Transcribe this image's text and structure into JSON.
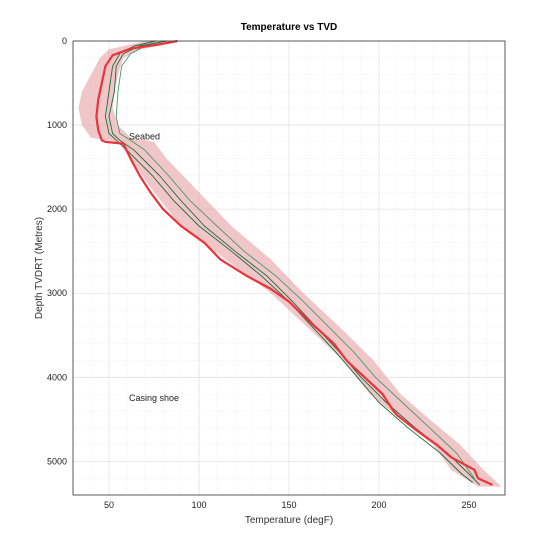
{
  "chart_data": {
    "type": "line",
    "title": "Temperature vs TVD",
    "xlabel": "Temperature (degF)",
    "ylabel": "Depth TVDRT (Metres)",
    "xlim": [
      30,
      270
    ],
    "ylim": [
      5400,
      0
    ],
    "x_ticks": [
      50,
      100,
      150,
      200,
      250
    ],
    "y_ticks": [
      0,
      1000,
      2000,
      3000,
      4000,
      5000
    ],
    "grid": true,
    "annotations": [
      {
        "text": "Seabed",
        "x": 60,
        "y": 1170
      },
      {
        "text": "Casing shoe",
        "x": 60,
        "y": 4280
      }
    ],
    "colors": {
      "band": "#e8a0a4",
      "main": "#e8343a",
      "green_dark": "#1e6b3c",
      "green_light": "#4a9a6a",
      "grid": "#e2e2e2",
      "axis": "#333333"
    },
    "band": {
      "y": [
        0,
        100,
        200,
        400,
        600,
        800,
        1000,
        1150,
        1200,
        1400,
        1800,
        2200,
        2600,
        3000,
        3400,
        3800,
        4200,
        4500,
        4800,
        5100,
        5300
      ],
      "x_low": [
        70,
        50,
        45,
        40,
        35,
        33,
        35,
        40,
        55,
        62,
        75,
        90,
        115,
        140,
        160,
        180,
        195,
        212,
        230,
        240,
        255
      ],
      "x_high": [
        90,
        68,
        58,
        55,
        53,
        52,
        55,
        62,
        75,
        82,
        100,
        118,
        140,
        158,
        178,
        197,
        212,
        228,
        245,
        258,
        268
      ]
    },
    "series": [
      {
        "type": "main",
        "x": [
          88,
          78,
          62,
          52,
          48,
          46,
          44,
          43,
          44,
          46,
          48,
          58,
          62,
          67,
          73,
          80,
          90,
          103,
          112,
          127,
          140,
          150,
          162,
          175,
          182,
          192,
          202,
          208,
          210,
          222,
          232,
          240,
          253,
          255,
          263
        ],
        "y": [
          0,
          40,
          90,
          170,
          300,
          500,
          700,
          900,
          1060,
          1180,
          1200,
          1220,
          1400,
          1600,
          1800,
          2000,
          2200,
          2400,
          2600,
          2800,
          2950,
          3100,
          3350,
          3600,
          3800,
          4000,
          4200,
          4400,
          4450,
          4650,
          4800,
          4950,
          5100,
          5200,
          5280
        ]
      },
      {
        "type": "green_dark",
        "x": [
          82,
          67,
          58,
          54,
          53,
          50,
          52,
          56,
          64,
          78,
          90,
          103,
          120,
          138,
          152,
          165,
          178,
          190,
          204,
          220,
          238,
          250,
          256
        ],
        "y": [
          0,
          60,
          150,
          300,
          600,
          900,
          1100,
          1180,
          1300,
          1600,
          1900,
          2200,
          2500,
          2800,
          3100,
          3400,
          3700,
          4000,
          4300,
          4600,
          4900,
          5150,
          5280
        ]
      },
      {
        "type": "green_light",
        "x": [
          88,
          70,
          62,
          57,
          55,
          54,
          56,
          62,
          70,
          83,
          95,
          110,
          125,
          143,
          158,
          172,
          186,
          198,
          213,
          228,
          243,
          253
        ],
        "y": [
          0,
          60,
          150,
          300,
          600,
          900,
          1100,
          1180,
          1300,
          1600,
          1900,
          2200,
          2500,
          2800,
          3100,
          3400,
          3700,
          4000,
          4300,
          4600,
          4900,
          5200
        ]
      },
      {
        "type": "green_dark",
        "x": [
          76,
          64,
          56,
          52,
          50,
          48,
          50,
          54,
          60,
          74,
          86,
          100,
          118,
          135,
          150,
          163,
          176,
          188,
          200,
          216,
          234,
          246,
          252
        ],
        "y": [
          0,
          60,
          150,
          300,
          600,
          900,
          1100,
          1180,
          1300,
          1600,
          1900,
          2200,
          2500,
          2800,
          3100,
          3400,
          3700,
          4000,
          4300,
          4600,
          4900,
          5150,
          5250
        ]
      }
    ]
  }
}
